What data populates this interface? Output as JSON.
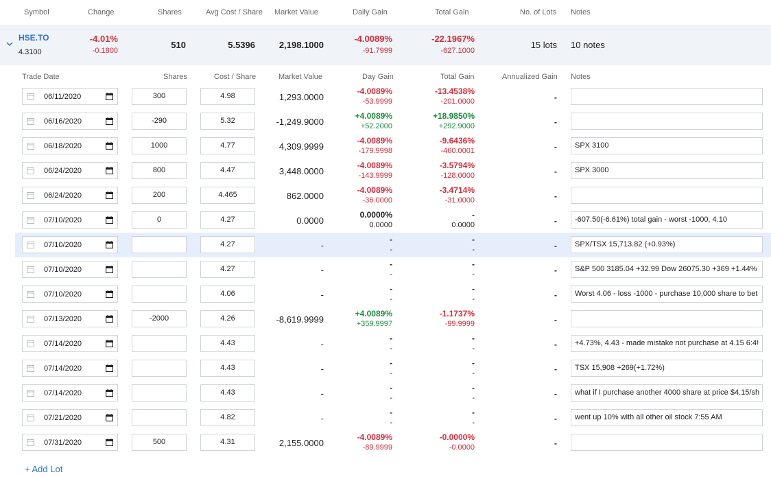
{
  "header": {
    "symbol": "Symbol",
    "change": "Change",
    "shares": "Shares",
    "avg_cost": "Avg Cost / Share",
    "market_value": "Market Value",
    "daily_gain": "Daily Gain",
    "total_gain": "Total Gain",
    "lots": "No. of Lots",
    "notes": "Notes"
  },
  "position": {
    "symbol": "HSE.TO",
    "price": "4.3100",
    "change_pct": "-4.01%",
    "change_abs": "-0.1800",
    "shares": "510",
    "avg_cost": "5.5396",
    "market_value": "2,198.1000",
    "daily_gain_pct": "-4.0089%",
    "daily_gain_abs": "-91.7999",
    "total_gain_pct": "-22.1967%",
    "total_gain_abs": "-627.1000",
    "lots": "15 lots",
    "notes": "10 notes"
  },
  "lot_header": {
    "trade_date": "Trade Date",
    "shares": "Shares",
    "cost": "Cost / Share",
    "market_value": "Market Value",
    "day_gain": "Day Gain",
    "total_gain": "Total Gain",
    "annualized": "Annualized Gain",
    "notes": "Notes"
  },
  "lots": [
    {
      "date": "06/11/2020",
      "shares": "300",
      "cost": "4.98",
      "mv": "1,293.0000",
      "dg1": "-4.0089%",
      "dg2": "-53.9999",
      "dgc": "red",
      "tg1": "-13.4538%",
      "tg2": "-201.0000",
      "tgc": "red",
      "ann": "-",
      "note": ""
    },
    {
      "date": "06/16/2020",
      "shares": "-290",
      "cost": "5.32",
      "mv": "-1,249.9000",
      "dg1": "+4.0089%",
      "dg2": "+52.2000",
      "dgc": "green",
      "tg1": "+18.9850%",
      "tg2": "+292.9000",
      "tgc": "green",
      "ann": "-",
      "note": ""
    },
    {
      "date": "06/18/2020",
      "shares": "1000",
      "cost": "4.77",
      "mv": "4,309.9999",
      "dg1": "-4.0089%",
      "dg2": "-179.9998",
      "dgc": "red",
      "tg1": "-9.6436%",
      "tg2": "-460.0001",
      "tgc": "red",
      "ann": "-",
      "note": "SPX 3100"
    },
    {
      "date": "06/24/2020",
      "shares": "800",
      "cost": "4.47",
      "mv": "3,448.0000",
      "dg1": "-4.0089%",
      "dg2": "-143.9999",
      "dgc": "red",
      "tg1": "-3.5794%",
      "tg2": "-128.0000",
      "tgc": "red",
      "ann": "-",
      "note": "SPX 3000"
    },
    {
      "date": "06/24/2020",
      "shares": "200",
      "cost": "4.465",
      "mv": "862.0000",
      "dg1": "-4.0089%",
      "dg2": "-36.0000",
      "dgc": "red",
      "tg1": "-3.4714%",
      "tg2": "-31.0000",
      "tgc": "red",
      "ann": "-",
      "note": ""
    },
    {
      "date": "07/10/2020",
      "shares": "0",
      "cost": "4.27",
      "mv": "0.0000",
      "dg1": "0.0000%",
      "dg2": "0.0000",
      "dgc": "black",
      "tg1": "-",
      "tg2": "0.0000",
      "tgc": "black",
      "ann": "-",
      "note": "-607.50(-6.61%) total gain - worst -1000, 4.10"
    },
    {
      "date": "07/10/2020",
      "shares": "",
      "cost": "4.27",
      "mv": "-",
      "dg1": "-",
      "dg2": "-",
      "dgc": "black",
      "tg1": "-",
      "tg2": "-",
      "tgc": "black",
      "ann": "-",
      "note": "SPX/TSX 15,713.82 (+0.93%)",
      "highlight": true
    },
    {
      "date": "07/10/2020",
      "shares": "",
      "cost": "4.27",
      "mv": "-",
      "dg1": "-",
      "dg2": "-",
      "dgc": "black",
      "tg1": "-",
      "tg2": "-",
      "tgc": "black",
      "ann": "-",
      "note": "S&P 500 3185.04 +32.99 Dow 26075.30 +369 +1.44%"
    },
    {
      "date": "07/10/2020",
      "shares": "",
      "cost": "4.06",
      "mv": "-",
      "dg1": "-",
      "dg2": "-",
      "dgc": "black",
      "tg1": "-",
      "tg2": "-",
      "tgc": "black",
      "ann": "-",
      "note": "Worst 4.06 - loss -1000 - purchase 10,000 share to bet"
    },
    {
      "date": "07/13/2020",
      "shares": "-2000",
      "cost": "4.26",
      "mv": "-8,619.9999",
      "dg1": "+4.0089%",
      "dg2": "+359.9997",
      "dgc": "green",
      "tg1": "-1.1737%",
      "tg2": "-99.9999",
      "tgc": "red",
      "ann": "-",
      "note": ""
    },
    {
      "date": "07/14/2020",
      "shares": "",
      "cost": "4.43",
      "mv": "-",
      "dg1": "-",
      "dg2": "-",
      "dgc": "black",
      "tg1": "-",
      "tg2": "-",
      "tgc": "black",
      "ann": "-",
      "note": "+4.73%, 4.43 - made mistake not purchase at 4.15  6:4!"
    },
    {
      "date": "07/14/2020",
      "shares": "",
      "cost": "4.43",
      "mv": "-",
      "dg1": "-",
      "dg2": "-",
      "dgc": "black",
      "tg1": "-",
      "tg2": "-",
      "tgc": "black",
      "ann": "-",
      "note": "TSX 15,908 +269(+1.72%)"
    },
    {
      "date": "07/14/2020",
      "shares": "",
      "cost": "4.43",
      "mv": "-",
      "dg1": "-",
      "dg2": "-",
      "dgc": "black",
      "tg1": "-",
      "tg2": "-",
      "tgc": "black",
      "ann": "-",
      "note": "what if I purchase another 4000 share at price $4.15/sh"
    },
    {
      "date": "07/21/2020",
      "shares": "",
      "cost": "4.82",
      "mv": "-",
      "dg1": "-",
      "dg2": "-",
      "dgc": "black",
      "tg1": "-",
      "tg2": "-",
      "tgc": "black",
      "ann": "-",
      "note": "went up 10% with all other oil stock 7:55 AM"
    },
    {
      "date": "07/31/2020",
      "shares": "500",
      "cost": "4.31",
      "mv": "2,155.0000",
      "dg1": "-4.0089%",
      "dg2": "-89.9999",
      "dgc": "red",
      "tg1": "-0.0000%",
      "tg2": "-0.0000",
      "tgc": "red",
      "ann": "-",
      "note": ""
    }
  ],
  "add_lot": "+ Add Lot",
  "colors": {
    "red": "#d92b3a",
    "green": "#1b8a3c",
    "link": "#2e6fd6",
    "highlight": "#e6eefb"
  }
}
